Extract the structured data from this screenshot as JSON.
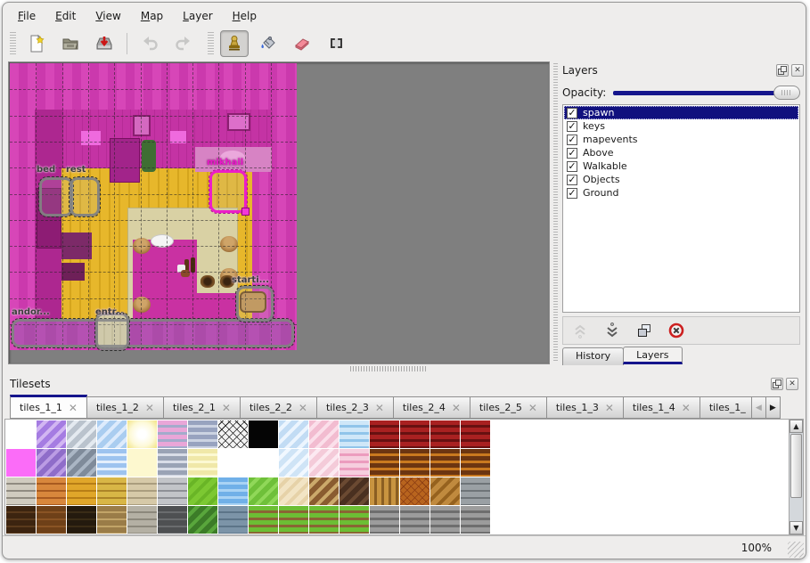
{
  "menu": {
    "items": [
      "File",
      "Edit",
      "View",
      "Map",
      "Layer",
      "Help"
    ]
  },
  "toolbar": {
    "icons": [
      {
        "name": "new-file-icon"
      },
      {
        "name": "open-file-icon"
      },
      {
        "name": "save-file-icon"
      },
      {
        "name": "undo-icon",
        "disabled": true
      },
      {
        "name": "redo-icon",
        "disabled": true
      },
      {
        "name": "stamp-tool-icon",
        "active": true
      },
      {
        "name": "fill-tool-icon"
      },
      {
        "name": "eraser-tool-icon"
      },
      {
        "name": "rect-select-tool-icon"
      }
    ]
  },
  "map_view": {
    "objects": [
      {
        "label": "bed",
        "selected": false
      },
      {
        "label": "rest",
        "selected": false
      },
      {
        "label": "mikhail",
        "selected": true
      },
      {
        "label": "andor...",
        "selected": false
      },
      {
        "label": "entr...",
        "selected": false
      },
      {
        "label": "starti...",
        "selected": false
      }
    ]
  },
  "layers_panel": {
    "title": "Layers",
    "float_icon": "float-icon",
    "close_icon": "close-icon",
    "opacity_label": "Opacity:",
    "opacity_percent": 100,
    "layers": [
      {
        "name": "spawn",
        "checked": true,
        "selected": true
      },
      {
        "name": "keys",
        "checked": true,
        "selected": false
      },
      {
        "name": "mapevents",
        "checked": true,
        "selected": false
      },
      {
        "name": "Above",
        "checked": true,
        "selected": false
      },
      {
        "name": "Walkable",
        "checked": true,
        "selected": false
      },
      {
        "name": "Objects",
        "checked": true,
        "selected": false
      },
      {
        "name": "Ground",
        "checked": true,
        "selected": false
      }
    ],
    "buttons": [
      {
        "name": "raise-layer-button",
        "disabled": true
      },
      {
        "name": "lower-layer-button",
        "disabled": false
      },
      {
        "name": "duplicate-layer-button",
        "disabled": false
      },
      {
        "name": "delete-layer-button",
        "disabled": false
      }
    ],
    "tabs": [
      {
        "label": "History",
        "active": false
      },
      {
        "label": "Layers",
        "active": true
      }
    ]
  },
  "tilesets_panel": {
    "title": "Tilesets",
    "tabs": [
      {
        "label": "tiles_1_1",
        "active": true
      },
      {
        "label": "tiles_1_2",
        "active": false
      },
      {
        "label": "tiles_2_1",
        "active": false
      },
      {
        "label": "tiles_2_2",
        "active": false
      },
      {
        "label": "tiles_2_3",
        "active": false
      },
      {
        "label": "tiles_2_4",
        "active": false
      },
      {
        "label": "tiles_2_5",
        "active": false
      },
      {
        "label": "tiles_1_3",
        "active": false
      },
      {
        "label": "tiles_1_4",
        "active": false
      },
      {
        "label": "tiles_1_",
        "active": false,
        "truncated": true
      }
    ],
    "scroll_left_label": "◀",
    "scroll_right_label": "▶",
    "palette_rows": [
      [
        [
          "#ffffff",
          "#ffffff",
          "s"
        ],
        [
          "#a57ce2",
          "#d2b6f2",
          "d"
        ],
        [
          "#bac3cd",
          "#e4eaf0",
          "d"
        ],
        [
          "#aacdf0",
          "#ddebfc",
          "d"
        ],
        [
          "#fdf9d8",
          "#f2e383",
          "g"
        ],
        [
          "#e9a6d8",
          "#a3abcb",
          "h"
        ],
        [
          "#98a3bf",
          "#ccd3e2",
          "h"
        ],
        [
          "#f2f2f2",
          "#1c1c1c",
          "x"
        ],
        [
          "#050505",
          "#050505",
          "s"
        ],
        [
          "#c2dcf4",
          "#ecf5fe",
          "d"
        ],
        [
          "#f2bcd0",
          "#fbdfea",
          "d"
        ],
        [
          "#cfe7f8",
          "#90c4ea",
          "h"
        ],
        [
          "#a92121",
          "#671111",
          "h"
        ],
        [
          "#a92121",
          "#671111",
          "h"
        ],
        [
          "#a92121",
          "#671111",
          "h"
        ],
        [
          "#a92121",
          "#671111",
          "h"
        ]
      ],
      [
        [
          "#fb6cf8",
          "#fb6cf8",
          "s"
        ],
        [
          "#8f6dc9",
          "#bb9ce4",
          "d"
        ],
        [
          "#7f8b9a",
          "#aab6c4",
          "d"
        ],
        [
          "#9dc3ef",
          "#e3effc",
          "h"
        ],
        [
          "#fdf8cf",
          "#fdf8cf",
          "s"
        ],
        [
          "#9aa3b5",
          "#d9dde7",
          "h"
        ],
        [
          "#f0e8a8",
          "#fcf9d2",
          "h"
        ],
        [
          "#ffffff",
          "#ffffff",
          "s"
        ],
        [
          "#ffffff",
          "#ffffff",
          "s"
        ],
        [
          "#cfe4f6",
          "#f1f8ff",
          "d"
        ],
        [
          "#f4cbd9",
          "#fce9f1",
          "d"
        ],
        [
          "#f6cede",
          "#ec9cbe",
          "h"
        ],
        [
          "#6c3511",
          "#c9791f",
          "h"
        ],
        [
          "#6c3511",
          "#c9791f",
          "h"
        ],
        [
          "#6c3511",
          "#c9791f",
          "h"
        ],
        [
          "#6c3511",
          "#c9791f",
          "h"
        ]
      ],
      [
        [
          "#d0cbbf",
          "#908b81",
          "b"
        ],
        [
          "#d8873c",
          "#a85a20",
          "b"
        ],
        [
          "#e0a62a",
          "#b87e16",
          "b"
        ],
        [
          "#d8b646",
          "#ac8428",
          "b"
        ],
        [
          "#d6c9a8",
          "#aa9d7e",
          "b"
        ],
        [
          "#c2c4c8",
          "#8e9096",
          "b"
        ],
        [
          "#7cc832",
          "#69b526",
          "d"
        ],
        [
          "#70b0e8",
          "#a9d3f4",
          "h"
        ],
        [
          "#6fc03a",
          "#90d859",
          "d"
        ],
        [
          "#f2e4c4",
          "#e6d2a8",
          "d"
        ],
        [
          "#8a5c30",
          "#cba96b",
          "d"
        ],
        [
          "#4a3020",
          "#6b4a32",
          "d"
        ],
        [
          "#c89440",
          "#8a5e22",
          "v"
        ],
        [
          "#b8641e",
          "#8a3c12",
          "x"
        ],
        [
          "#c08a3e",
          "#96621e",
          "d"
        ],
        [
          "#9aa0a4",
          "#6e7478",
          "b"
        ]
      ],
      [
        [
          "#3c2410",
          "#5a3a1c",
          "b"
        ],
        [
          "#6e4018",
          "#8a5424",
          "b"
        ],
        [
          "#241a0e",
          "#3a2c16",
          "b"
        ],
        [
          "#9a7c48",
          "#c2a468",
          "b"
        ],
        [
          "#b4b0a4",
          "#8c887c",
          "b"
        ],
        [
          "#4e5052",
          "#6a6c6e",
          "b"
        ],
        [
          "#3c7c28",
          "#59a63c",
          "d"
        ],
        [
          "#7c94a8",
          "#5c7488",
          "b"
        ],
        [
          "#6cbe34",
          "#8a6534",
          "h"
        ],
        [
          "#6cbe34",
          "#8a6534",
          "h"
        ],
        [
          "#6cbe34",
          "#8a6534",
          "h"
        ],
        [
          "#6cbe34",
          "#8a6534",
          "h"
        ],
        [
          "#9c9c9c",
          "#6e6e6e",
          "h"
        ],
        [
          "#9c9c9c",
          "#6e6e6e",
          "h"
        ],
        [
          "#9c9c9c",
          "#6e6e6e",
          "h"
        ],
        [
          "#9c9c9c",
          "#6e6e6e",
          "h"
        ]
      ]
    ]
  },
  "status_bar": {
    "zoom_level": "100%"
  },
  "colors": {
    "accent_navy": "#15158c",
    "selection": "#10107e",
    "map_wall_magenta": "#cb39ad",
    "map_floor_yellow": "#e7b72b",
    "map_tatami": "#d9d1a4",
    "viewport_gray": "#7f7f7f",
    "object_outline_selected": "#ec1ec8"
  }
}
